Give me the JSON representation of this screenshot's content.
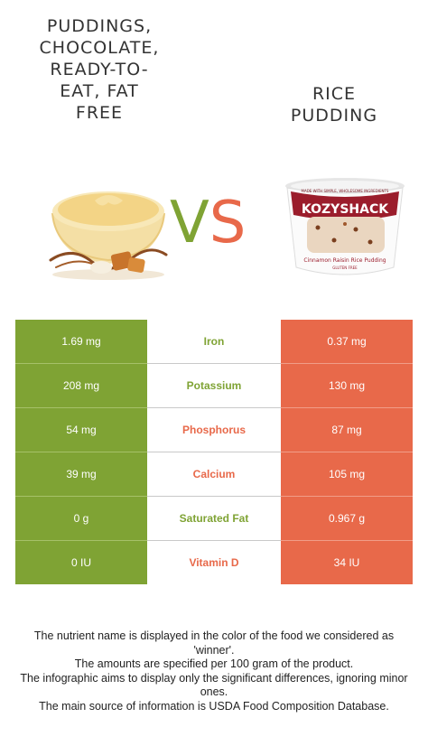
{
  "left_food": {
    "title": "PUDDINGS,\nCHOCOLATE,\nREADY-TO-\nEAT, FAT\nFREE",
    "image": "pudding-bowl-image"
  },
  "right_food": {
    "title": "RICE\nPUDDING",
    "image": "rice-pudding-cup-image",
    "package_text": {
      "brand": "KOZYSHACK",
      "tagline": "MADE WITH SIMPLE, WHOLESOME INGREDIENTS",
      "flavor": "Cinnamon Raisin Rice Pudding",
      "note": "GLUTEN FREE"
    }
  },
  "vs": {
    "v": "V",
    "s": "S"
  },
  "colors": {
    "left": "#7fa334",
    "right": "#e8694a"
  },
  "rows": [
    {
      "left": "1.69 mg",
      "nutrient": "Iron",
      "right": "0.37 mg",
      "winner": "left"
    },
    {
      "left": "208 mg",
      "nutrient": "Potassium",
      "right": "130 mg",
      "winner": "left"
    },
    {
      "left": "54 mg",
      "nutrient": "Phosphorus",
      "right": "87 mg",
      "winner": "right"
    },
    {
      "left": "39 mg",
      "nutrient": "Calcium",
      "right": "105 mg",
      "winner": "right"
    },
    {
      "left": "0 g",
      "nutrient": "Saturated Fat",
      "right": "0.967 g",
      "winner": "left"
    },
    {
      "left": "0 IU",
      "nutrient": "Vitamin D",
      "right": "34 IU",
      "winner": "right"
    }
  ],
  "footer": [
    "The nutrient name is displayed in the color of the food we considered as 'winner'.",
    "The amounts are specified per 100 gram of the product.",
    "The infographic aims to display only the significant differences, ignoring minor ones.",
    "The main source of information is USDA Food Composition Database."
  ]
}
